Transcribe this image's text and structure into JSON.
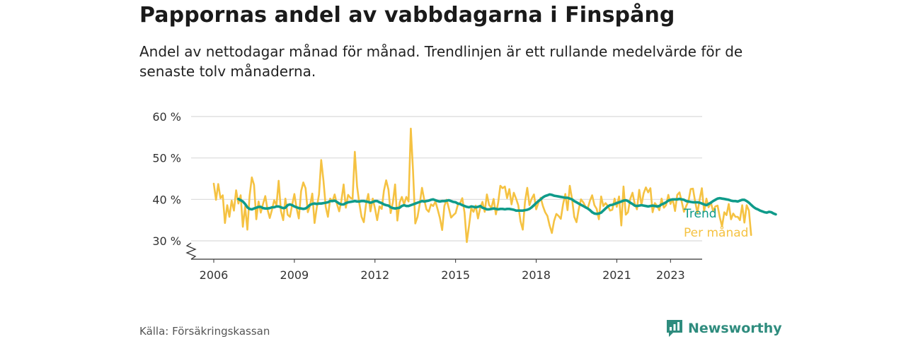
{
  "header": {
    "title": "Pappornas andel av vabbdagarna i Finspång",
    "subtitle": "Andel av nettodagar månad för månad. Trendlinjen är ett rullande medelvärde för de senaste tolv månaderna."
  },
  "footer": {
    "source": "Källa: Försäkringskassan",
    "brand": "Newsworthy",
    "brand_icon": "bar-chart-bubble-icon"
  },
  "colors": {
    "monthly": "#f5c242",
    "trend": "#0f9b8a",
    "grid": "#d9d9d9",
    "axis": "#333333",
    "brand": "#2f8c7e"
  },
  "chart_data": {
    "type": "line",
    "ylim": [
      30,
      60
    ],
    "y_ticks": [
      30,
      40,
      50,
      60
    ],
    "y_tick_labels": [
      "30 %",
      "40 %",
      "50 %",
      "60 %"
    ],
    "x_range": [
      "2006-01",
      "2023-05"
    ],
    "x_ticks": [
      "2006",
      "2009",
      "2012",
      "2015",
      "2018",
      "2021",
      "2023"
    ],
    "y_axis_break": true,
    "grid": true,
    "legend": "inline-right",
    "series": [
      {
        "name": "Per månad",
        "start": "2006-01",
        "values": [
          43.8,
          39.9,
          43.7,
          40.3,
          41.0,
          34.3,
          38.6,
          35.8,
          39.7,
          37.3,
          42.2,
          39.0,
          41.0,
          33.4,
          38.3,
          32.7,
          40.8,
          45.3,
          43.5,
          35.2,
          39.5,
          36.8,
          38.9,
          40.8,
          37.6,
          35.5,
          37.5,
          39.8,
          38.6,
          44.5,
          37.2,
          35.0,
          40.2,
          36.3,
          35.8,
          38.6,
          41.3,
          37.9,
          35.4,
          42.0,
          44.1,
          42.7,
          36.9,
          38.5,
          41.4,
          34.3,
          38.0,
          41.2,
          49.5,
          44.5,
          38.2,
          35.8,
          40.2,
          39.5,
          41.2,
          38.9,
          37.1,
          39.7,
          43.6,
          38.0,
          41.1,
          40.4,
          40.1,
          51.5,
          43.1,
          39.1,
          35.8,
          34.5,
          38.8,
          41.3,
          37.1,
          40.2,
          37.8,
          35.0,
          38.3,
          37.7,
          42.1,
          44.6,
          42.4,
          36.7,
          39.3,
          43.6,
          34.9,
          39.2,
          40.6,
          38.8,
          40.6,
          39.5,
          57.1,
          47.0,
          34.2,
          35.8,
          38.9,
          42.8,
          39.9,
          37.6,
          37.0,
          38.8,
          38.4,
          39.5,
          37.6,
          35.5,
          32.6,
          38.4,
          39.9,
          37.8,
          35.6,
          36.2,
          36.7,
          38.7,
          39.1,
          40.3,
          36.8,
          29.7,
          33.6,
          37.9,
          37.0,
          38.5,
          35.4,
          38.0,
          39.4,
          37.0,
          41.2,
          38.6,
          38.0,
          40.1,
          36.4,
          39.2,
          43.3,
          42.7,
          43.1,
          40.3,
          42.5,
          38.8,
          41.6,
          40.2,
          38.6,
          34.7,
          32.7,
          39.4,
          42.8,
          38.6,
          40.2,
          41.2,
          37.6,
          39.2,
          40.4,
          38.4,
          36.9,
          36.0,
          33.7,
          31.9,
          34.8,
          36.5,
          36.0,
          35.3,
          38.8,
          41.3,
          37.4,
          43.3,
          40.1,
          35.8,
          34.5,
          37.6,
          40.0,
          39.3,
          38.3,
          37.8,
          39.7,
          41.0,
          38.6,
          37.7,
          35.2,
          40.7,
          38.4,
          39.1,
          38.4,
          37.3,
          37.5,
          40.2,
          38.2,
          40.7,
          33.7,
          43.1,
          36.3,
          36.9,
          40.1,
          41.6,
          39.0,
          37.6,
          42.3,
          38.6,
          41.5,
          42.9,
          41.7,
          42.7,
          36.9,
          39.1,
          38.4,
          37.4,
          40.2,
          38.0,
          38.6,
          41.1,
          38.9,
          40.0,
          37.2,
          41.1,
          41.7,
          39.4,
          37.0,
          38.4,
          39.6,
          42.5,
          42.6,
          39.5,
          36.7,
          40.0,
          42.7,
          37.1,
          40.2,
          38.1,
          39.3,
          37.1,
          38.3,
          38.5,
          35.7,
          33.5,
          36.9,
          36.2,
          38.9,
          35.2,
          36.6,
          35.8,
          35.8,
          35.0,
          38.6,
          34.4,
          38.6,
          37.3,
          31.4
        ],
        "color": "#f5c242"
      },
      {
        "name": "Trend",
        "start": "2006-12",
        "values": [
          40.1,
          39.8,
          39.5,
          38.9,
          38.1,
          37.7,
          37.6,
          37.8,
          38.0,
          38.2,
          38.2,
          37.9,
          37.8,
          37.8,
          37.9,
          38.1,
          38.1,
          38.3,
          38.3,
          38.1,
          37.9,
          38.0,
          38.6,
          38.8,
          38.6,
          38.3,
          38.1,
          37.9,
          37.8,
          37.7,
          37.8,
          38.2,
          38.7,
          38.9,
          39.0,
          38.9,
          39.0,
          39.0,
          39.1,
          39.2,
          39.3,
          39.6,
          39.6,
          39.7,
          39.4,
          39.0,
          38.8,
          38.8,
          39.1,
          39.3,
          39.4,
          39.5,
          39.6,
          39.5,
          39.5,
          39.6,
          39.6,
          39.5,
          39.4,
          39.2,
          39.4,
          39.6,
          39.6,
          39.3,
          39.1,
          38.8,
          38.6,
          38.5,
          38.1,
          37.9,
          37.8,
          37.9,
          38.0,
          38.4,
          38.6,
          38.4,
          38.4,
          38.6,
          38.8,
          39.0,
          39.2,
          39.4,
          39.6,
          39.5,
          39.6,
          39.7,
          39.9,
          40.0,
          39.8,
          39.6,
          39.5,
          39.6,
          39.6,
          39.7,
          39.8,
          39.6,
          39.4,
          39.3,
          39.0,
          38.9,
          38.6,
          38.4,
          38.2,
          38.1,
          38.3,
          38.2,
          38.1,
          38.2,
          38.4,
          38.0,
          37.8,
          37.6,
          37.6,
          37.7,
          37.8,
          37.7,
          37.6,
          37.7,
          37.7,
          37.6,
          37.7,
          37.7,
          37.6,
          37.5,
          37.3,
          37.3,
          37.3,
          37.3,
          37.4,
          37.5,
          37.7,
          38.1,
          38.6,
          39.1,
          39.6,
          40.0,
          40.5,
          40.8,
          41.0,
          41.2,
          41.1,
          40.9,
          40.8,
          40.7,
          40.6,
          40.5,
          40.4,
          40.4,
          40.2,
          40.0,
          39.6,
          39.3,
          39.0,
          38.7,
          38.4,
          38.1,
          37.8,
          37.4,
          36.9,
          36.6,
          36.5,
          36.6,
          36.8,
          37.3,
          37.8,
          38.3,
          38.6,
          38.7,
          38.9,
          39.1,
          39.3,
          39.5,
          39.7,
          39.8,
          39.6,
          39.2,
          38.9,
          38.5,
          38.4,
          38.5,
          38.6,
          38.5,
          38.4,
          38.3,
          38.4,
          38.5,
          38.4,
          38.3,
          38.4,
          38.8,
          39.0,
          39.3,
          39.7,
          39.9,
          40.0,
          40.0,
          40.0,
          40.1,
          40.0,
          39.9,
          39.6,
          39.5,
          39.4,
          39.3,
          39.3,
          39.3,
          39.2,
          39.0,
          38.8,
          38.6,
          38.9,
          39.2,
          39.6,
          39.9,
          40.2,
          40.3,
          40.2,
          40.1,
          40.0,
          39.9,
          39.7,
          39.6,
          39.6,
          39.5,
          39.7,
          39.9,
          39.9,
          39.6,
          39.2,
          38.7,
          38.2,
          37.8,
          37.6,
          37.3,
          37.1,
          36.9,
          36.8,
          37.0,
          36.9,
          36.6,
          36.4
        ],
        "color": "#0f9b8a"
      }
    ]
  }
}
